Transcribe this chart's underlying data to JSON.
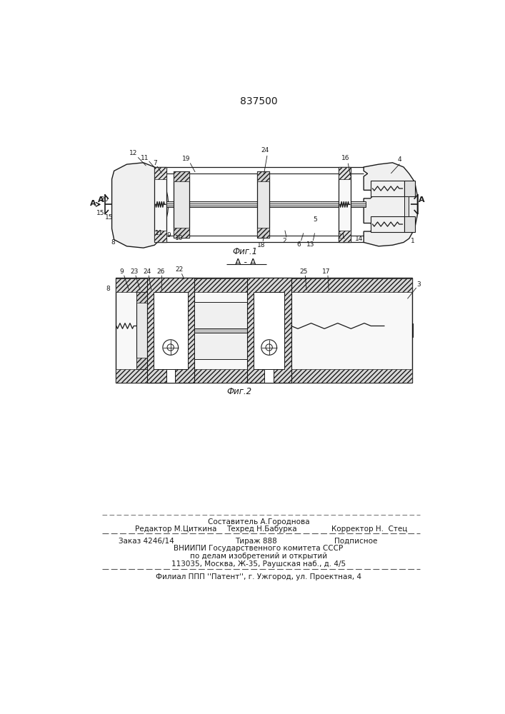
{
  "patent_number": "837500",
  "bg": "#ffffff",
  "tc": "#1a1a1a",
  "fig1_caption": "Фиг.1",
  "fig2_caption": "Фиг.2",
  "section_label": "А - А",
  "footer": {
    "sostavitel": "Составитель А.Городнова",
    "redaktor": "Редактор М.Циткина",
    "tehred": "Техред Н.Бабурка",
    "korrektor": "Корректор Н.  Стец",
    "zakaz": "Заказ 4246/14",
    "tirazh": "Тираж 888",
    "podpisnoe": "Подписное",
    "vniip1": "ВНИИПИ Государственного комитета СССР",
    "vniip2": "по делам изобретений и открытий",
    "vniip3": "113035, Москва, Ж-35, Раушская наб., д. 4/5",
    "filial": "Филиал ППП ''Патент'', г. Ужгород, ул. Проектная, 4"
  }
}
